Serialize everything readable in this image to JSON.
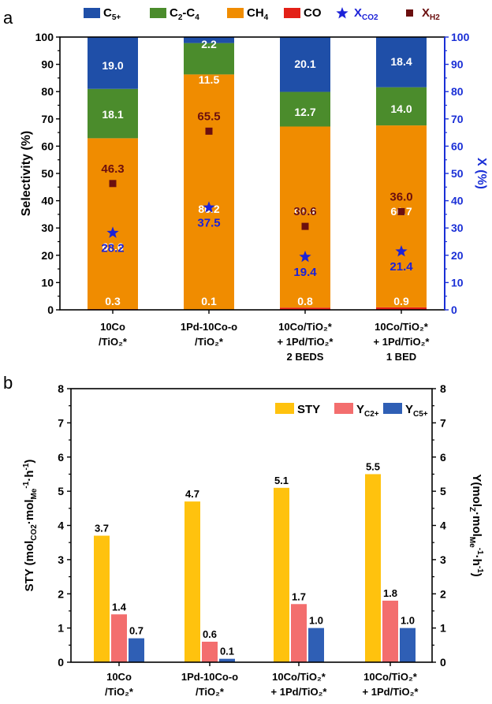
{
  "colors": {
    "C5": "#1f4fa8",
    "C2C4": "#4b8c2c",
    "CH4": "#f08c00",
    "CO": "#e32017",
    "XCO2": "#1c22d8",
    "XH2": "#6b0f0f",
    "STY": "#ffc20e",
    "YC2": "#f36e6e",
    "YC5": "#2f5fb5",
    "rightAxis": "#1a2fd6"
  },
  "chart_data": [
    {
      "panel": "a",
      "type": "bar",
      "stacked": true,
      "ylabel": "Selectivity (%)",
      "y2label": "X (%)",
      "ylim": [
        0,
        100
      ],
      "y2lim": [
        0,
        100
      ],
      "yticks": [
        "0",
        "10",
        "20",
        "30",
        "40",
        "50",
        "60",
        "70",
        "80",
        "90",
        "100"
      ],
      "y2ticks": [
        "0",
        "10",
        "20",
        "30",
        "40",
        "50",
        "60",
        "70",
        "80",
        "90",
        "100"
      ],
      "categories": [
        [
          "10Co",
          "/TiO₂*"
        ],
        [
          "1Pd-10Co-o",
          "/TiO₂*"
        ],
        [
          "10Co/TiO₂*",
          "+ 1Pd/TiO₂*",
          "2 BEDS"
        ],
        [
          "10Co/TiO₂*",
          "+ 1Pd/TiO₂*",
          "1 BED"
        ]
      ],
      "legend": [
        {
          "key": "C5",
          "base": "C",
          "sub": "5+",
          "mark": "box"
        },
        {
          "key": "C2C4",
          "base": "C",
          "sub": "2",
          "tail": "-C",
          "sub2": "4",
          "mark": "box"
        },
        {
          "key": "CH4",
          "base": "CH",
          "sub": "4",
          "mark": "box"
        },
        {
          "key": "CO",
          "base": "CO",
          "sub": "",
          "mark": "box"
        },
        {
          "key": "XCO2",
          "base": "X",
          "sub": "CO2",
          "mark": "star"
        },
        {
          "key": "XH2",
          "base": "X",
          "sub": "H2",
          "mark": "square"
        }
      ],
      "series": [
        {
          "key": "CO",
          "values": [
            0.3,
            0.1,
            0.8,
            0.9
          ],
          "labels": [
            "0.3",
            "0.1",
            "0.8",
            "0.9"
          ]
        },
        {
          "key": "CH4",
          "values": [
            62.6,
            86.2,
            66.4,
            66.7
          ],
          "labels": [
            "62.6",
            "86.2",
            "66.4",
            "66.7"
          ]
        },
        {
          "key": "C2C4",
          "values": [
            18.1,
            11.5,
            12.7,
            14.0
          ],
          "labels": [
            "18.1",
            "11.5",
            "12.7",
            "14.0"
          ]
        },
        {
          "key": "C5",
          "values": [
            19.0,
            2.2,
            20.1,
            18.4
          ],
          "labels": [
            "19.0",
            "2.2",
            "20.1",
            "18.4"
          ]
        }
      ],
      "points": [
        {
          "key": "XCO2",
          "values": [
            28.2,
            37.5,
            19.4,
            21.4
          ],
          "labels": [
            "28.2",
            "37.5",
            "19.4",
            "21.4"
          ]
        },
        {
          "key": "XH2",
          "values": [
            46.3,
            65.5,
            30.6,
            36.0
          ],
          "labels": [
            "46.3",
            "65.5",
            "30.6",
            "36.0"
          ]
        }
      ]
    },
    {
      "panel": "b",
      "type": "bar",
      "stacked": false,
      "ylabel": "STY (mol_CO2·mol_Me^-1·h^-1)",
      "y2label": "Y(mol_Z·mol_Me^-1·h^-1)",
      "ylim": [
        0,
        8
      ],
      "y2lim": [
        0,
        8
      ],
      "yticks": [
        "0",
        "1",
        "2",
        "3",
        "4",
        "5",
        "6",
        "7",
        "8"
      ],
      "y2ticks": [
        "0",
        "1",
        "2",
        "3",
        "4",
        "5",
        "6",
        "7",
        "8"
      ],
      "categories": [
        [
          "10Co",
          "/TiO₂*"
        ],
        [
          "1Pd-10Co-o",
          "/TiO₂*"
        ],
        [
          "10Co/TiO₂*",
          "+ 1Pd/TiO₂*"
        ],
        [
          "10Co/TiO₂*",
          "+ 1Pd/TiO₂*"
        ]
      ],
      "legend": [
        {
          "key": "STY",
          "base": "STY",
          "sub": ""
        },
        {
          "key": "YC2",
          "base": "Y",
          "sub": "C2+"
        },
        {
          "key": "YC5",
          "base": "Y",
          "sub": "C5+"
        }
      ],
      "series": [
        {
          "key": "STY",
          "values": [
            3.7,
            4.7,
            5.1,
            5.5
          ],
          "labels": [
            "3.7",
            "4.7",
            "5.1",
            "5.5"
          ]
        },
        {
          "key": "YC2",
          "values": [
            1.4,
            0.6,
            1.7,
            1.8
          ],
          "labels": [
            "1.4",
            "0.6",
            "1.7",
            "1.8"
          ]
        },
        {
          "key": "YC5",
          "values": [
            0.7,
            0.1,
            1.0,
            1.0
          ],
          "labels": [
            "0.7",
            "0.1",
            "1.0",
            "1.0"
          ]
        }
      ]
    }
  ],
  "panel_labels": [
    "a",
    "b"
  ]
}
